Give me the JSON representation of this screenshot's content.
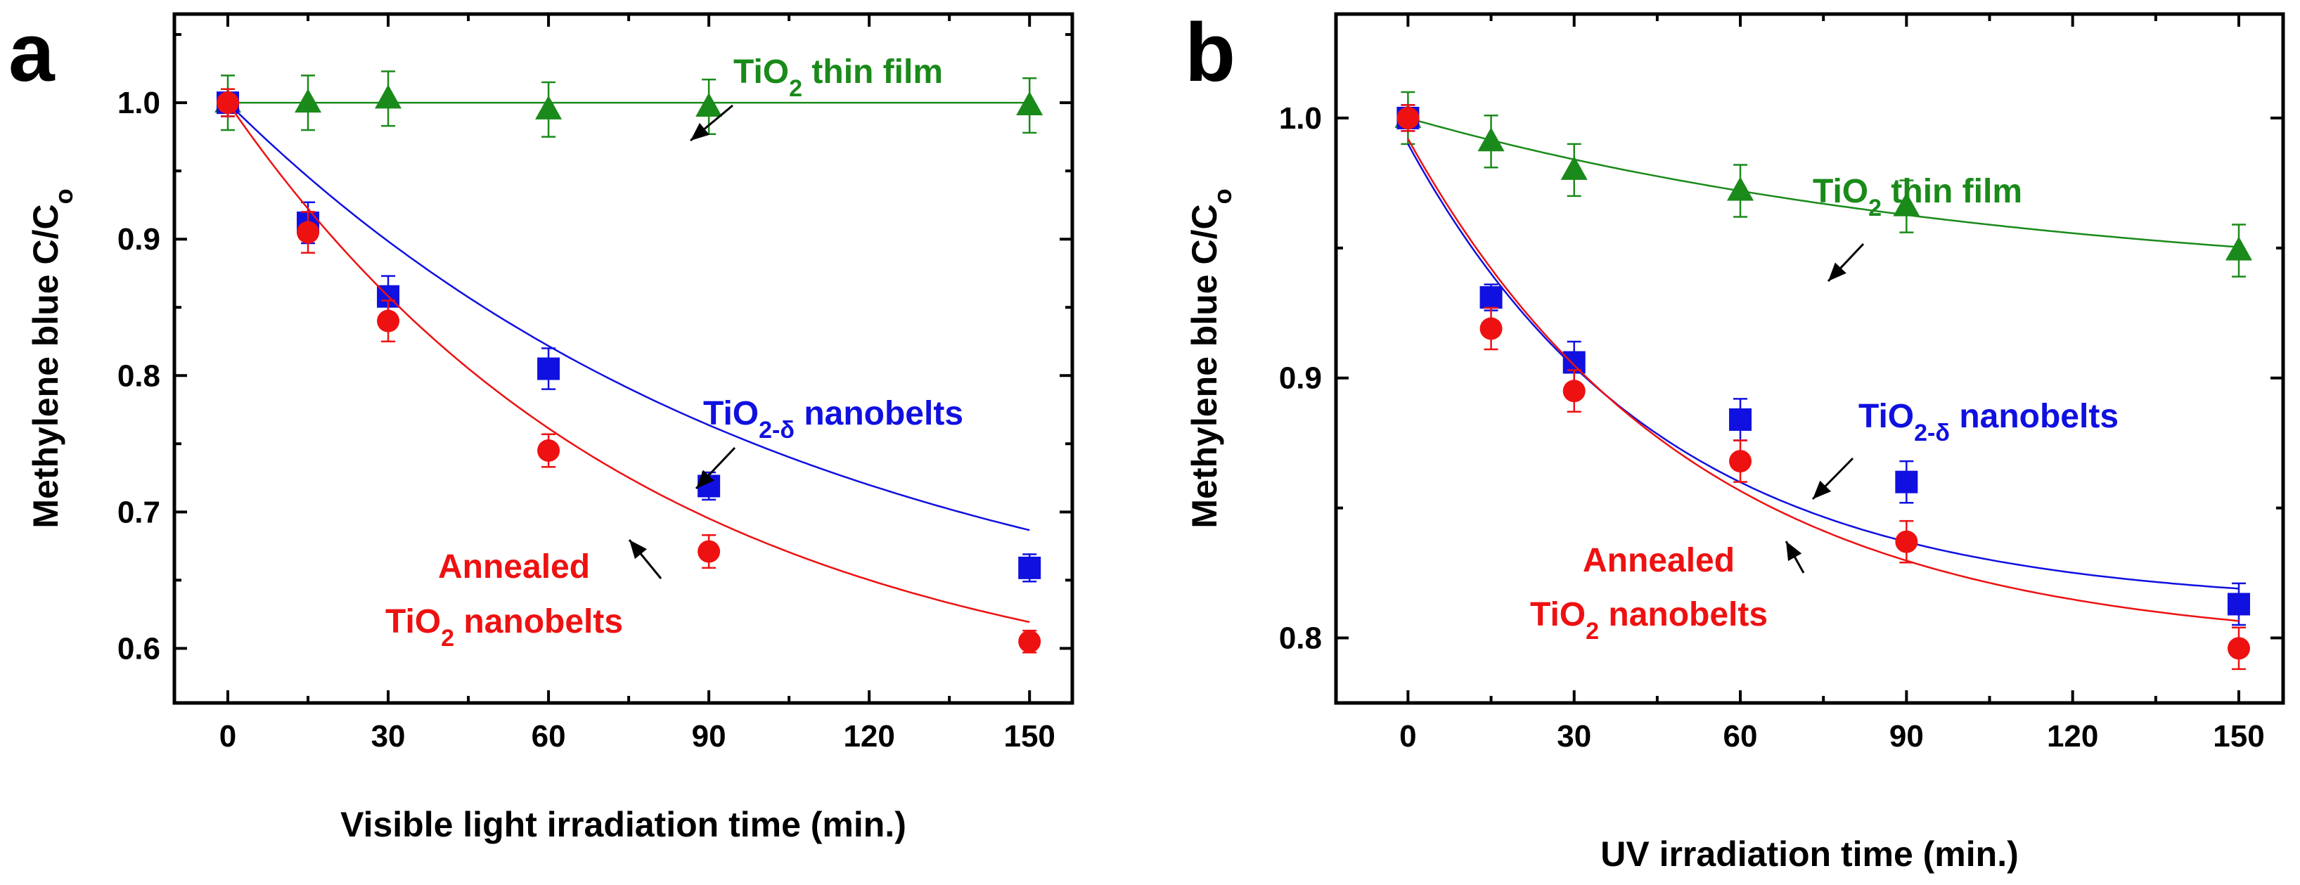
{
  "chart_data": [
    {
      "type": "scatter",
      "panel_label": "a",
      "xlabel": "Visible light irradiation time (min.)",
      "ylabel": "Methylene blue C/C",
      "ylabel_sub": "o",
      "xlim": [
        -10,
        158
      ],
      "ylim": [
        0.56,
        1.065
      ],
      "xticks": [
        0,
        30,
        60,
        90,
        120,
        150
      ],
      "xticks_minor": [
        15,
        45,
        75,
        105,
        135
      ],
      "yticks": [
        0.6,
        0.7,
        0.8,
        0.9,
        1.0
      ],
      "yticks_minor": [
        0.65,
        0.75,
        0.85,
        0.95,
        1.05
      ],
      "ytick_labels": [
        "0.6",
        "0.7",
        "0.8",
        "0.9",
        "1.0"
      ],
      "series": [
        {
          "name": "TiO2 thin film",
          "marker": "triangle",
          "color": "#1a8a1a",
          "x": [
            0,
            15,
            30,
            60,
            90,
            150
          ],
          "y": [
            1.0,
            1.0,
            1.003,
            0.995,
            0.997,
            0.998
          ],
          "err": [
            0.02,
            0.02,
            0.02,
            0.02,
            0.02,
            0.02
          ],
          "fit": {
            "type": "constant",
            "value": 1.0
          }
        },
        {
          "name": "TiO2-δ nanobelts",
          "marker": "square",
          "color": "#1010e0",
          "x": [
            0,
            15,
            30,
            60,
            90,
            150
          ],
          "y": [
            1.0,
            0.912,
            0.858,
            0.805,
            0.719,
            0.659
          ],
          "err": [
            0.01,
            0.015,
            0.015,
            0.015,
            0.01,
            0.01
          ],
          "fit": {
            "type": "exp",
            "y0": 0.584,
            "A": 0.416,
            "tau": 107.2
          }
        },
        {
          "name": "Annealed TiO2 nanobelts",
          "marker": "circle",
          "color": "#ee1111",
          "x": [
            0,
            15,
            30,
            60,
            90,
            150
          ],
          "y": [
            1.0,
            0.905,
            0.84,
            0.745,
            0.671,
            0.605
          ],
          "err": [
            0.01,
            0.015,
            0.015,
            0.012,
            0.012,
            0.008
          ],
          "fit": {
            "type": "exp",
            "y0": 0.553,
            "A": 0.447,
            "tau": 78.6
          }
        }
      ],
      "annotations": [
        {
          "main": "TiO",
          "sub": "2",
          "rest": " thin film",
          "color": "#1a8a1a"
        },
        {
          "main": "TiO",
          "sub": "2-δ",
          "rest": " nanobelts",
          "color": "#1010e0"
        },
        {
          "line1": "Annealed",
          "main": "TiO",
          "sub": "2",
          "rest": " nanobelts",
          "color": "#ee1111"
        }
      ]
    },
    {
      "type": "scatter",
      "panel_label": "b",
      "xlabel": "UV irradiation time (min.)",
      "ylabel": "Methylene blue C/C",
      "ylabel_sub": "o",
      "xlim": [
        -13,
        158
      ],
      "ylim": [
        0.775,
        1.04
      ],
      "xticks": [
        0,
        30,
        60,
        90,
        120,
        150
      ],
      "xticks_minor": [
        15,
        45,
        75,
        105,
        135
      ],
      "yticks": [
        0.8,
        0.9,
        1.0
      ],
      "yticks_minor": [
        0.85,
        0.95
      ],
      "ytick_labels": [
        "0.8",
        "0.9",
        "1.0"
      ],
      "series": [
        {
          "name": "TiO2 thin film",
          "marker": "triangle",
          "color": "#1a8a1a",
          "x": [
            0,
            15,
            30,
            60,
            90,
            150
          ],
          "y": [
            1.0,
            0.991,
            0.98,
            0.972,
            0.966,
            0.949
          ],
          "err": [
            0.01,
            0.01,
            0.01,
            0.01,
            0.01,
            0.01
          ],
          "fit": {
            "type": "exp",
            "y0": 0.9333,
            "A": 0.0667,
            "tau": 110
          }
        },
        {
          "name": "TiO2-δ nanobelts",
          "marker": "square",
          "color": "#1010e0",
          "x": [
            0,
            15,
            30,
            60,
            90,
            150
          ],
          "y": [
            1.0,
            0.931,
            0.906,
            0.884,
            0.86,
            0.813
          ],
          "err": [
            0.005,
            0.005,
            0.008,
            0.008,
            0.008,
            0.008
          ],
          "fit": {
            "type": "exp",
            "y0": 0.8124,
            "A": 0.1776,
            "tau": 45.5
          }
        },
        {
          "name": "Annealed TiO2 nanobelts",
          "marker": "circle",
          "color": "#ee1111",
          "x": [
            0,
            15,
            30,
            60,
            90,
            150
          ],
          "y": [
            1.0,
            0.919,
            0.895,
            0.868,
            0.837,
            0.796
          ],
          "err": [
            0.005,
            0.008,
            0.008,
            0.008,
            0.008,
            0.008
          ],
          "fit": {
            "type": "exp",
            "y0": 0.7962,
            "A": 0.1958,
            "tau": 51
          }
        }
      ],
      "annotations": [
        {
          "main": "TiO",
          "sub": "2",
          "rest": " thin film",
          "color": "#1a8a1a"
        },
        {
          "main": "TiO",
          "sub": "2-δ",
          "rest": " nanobelts",
          "color": "#1010e0"
        },
        {
          "line1": "Annealed",
          "main": "TiO",
          "sub": "2",
          "rest": " nanobelts",
          "color": "#ee1111"
        }
      ]
    }
  ]
}
